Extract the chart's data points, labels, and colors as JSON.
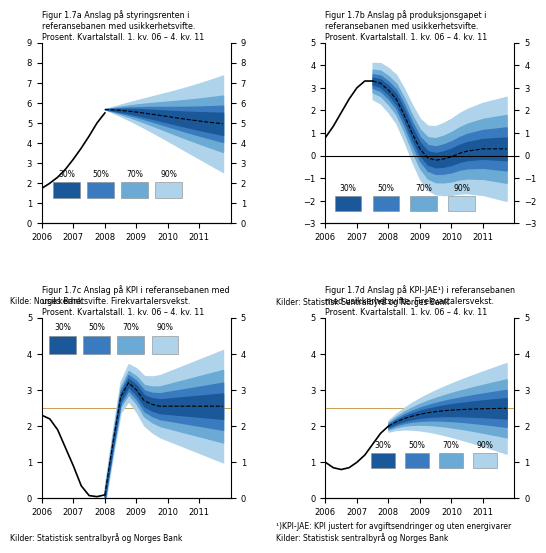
{
  "fan_colors_dark_to_light": [
    "#1a5899",
    "#3a7bbf",
    "#6aaad4",
    "#aed3ea"
  ],
  "legend_labels": [
    "30%",
    "50%",
    "70%",
    "90%"
  ],
  "source_a": "Kilde: Norges Bank",
  "source_b": "Kilder: Statistisk Sentralbyrå og Norges Bank",
  "source_c": "Kilder: Statistisk sentralbyrå og Norges Bank",
  "source_d": "¹)KPI-JAE: KPI justert for avgiftsendringer og uten energivarer\nKilder: Statistisk sentralbyrå og Norges Bank",
  "title_a": "Figur 1.7a Anslag på styringsrenten i\nreferansebanen med usikkerhetsvifte.\nProsent. Kvartalstall. 1. kv. 06 – 4. kv. 11",
  "title_b": "Figur 1.7b Anslag på produksjonsgapet i\nreferansebanen med usikkerhetsvifte.\nProsent. Kvartalstall. 1. kv. 06 – 4. kv. 11",
  "title_c": "Figur 1.7c Anslag på KPI i referansebanen med\nusikkerhetsvifte. Firekvartalersvekst.\nProsent. Kvartalstall. 1. kv. 06 – 4. kv. 11",
  "title_d": "Figur 1.7d Anslag på KPI-JAE¹) i referansebanen\nmed usikkerhetsvifte. Firekvartalersvekst.\nProsent. Kvartalstall. 1. kv. 06 – 4. kv. 11"
}
